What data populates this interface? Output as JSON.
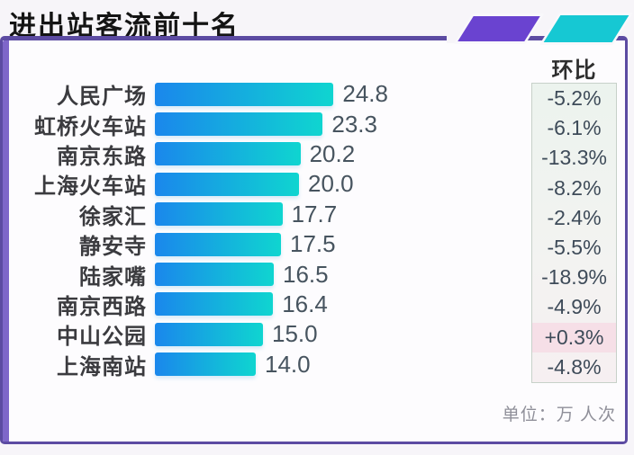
{
  "title": "进出站客流前十名",
  "unit_note": "单位：万 人次",
  "huanbi": {
    "header": "环比",
    "values": [
      "-5.2%",
      "-6.1%",
      "-13.3%",
      "-8.2%",
      "-2.4%",
      "-5.5%",
      "-18.9%",
      "-4.9%",
      "+0.3%",
      "-4.8%"
    ],
    "highlight_index": 8
  },
  "chart_data": {
    "type": "bar",
    "orientation": "horizontal",
    "title": "进出站客流前十名",
    "categories": [
      "人民广场",
      "虹桥火车站",
      "南京东路",
      "上海火车站",
      "徐家汇",
      "静安寺",
      "陆家嘴",
      "南京西路",
      "中山公园",
      "上海南站"
    ],
    "values": [
      24.8,
      23.3,
      20.2,
      20.0,
      17.7,
      17.5,
      16.5,
      16.4,
      15.0,
      14.0
    ],
    "value_labels": [
      "24.8",
      "23.3",
      "20.2",
      "20.0",
      "17.7",
      "17.5",
      "16.5",
      "16.4",
      "15.0",
      "14.0"
    ],
    "huanbi_column": [
      "-5.2%",
      "-6.1%",
      "-13.3%",
      "-8.2%",
      "-2.4%",
      "-5.5%",
      "-18.9%",
      "-4.9%",
      "+0.3%",
      "-4.8%"
    ],
    "xlim": [
      0,
      25
    ],
    "unit": "万 人次",
    "grid": false,
    "legend": null
  },
  "colors": {
    "accent_purple": "#5c4ba2",
    "left_strip_purple": "#7e66c9",
    "deco_purple": "#6a43d0",
    "deco_cyan": "#16c8d3",
    "bar_gradient_start": "#1a87ec",
    "bar_gradient_end": "#0fd5d0",
    "huanbi_box_bg_top": "#ecf3ee",
    "huanbi_box_bg_bottom": "#f6eff1",
    "huanbi_box_border": "#c7d1c9",
    "highlight_pink": "#f6dfe7",
    "title_text": "#141414",
    "label_text": "#3b3b3f",
    "value_text": "#47545f",
    "huanbi_text": "#3e4b59",
    "unit_text": "#8f8f99"
  }
}
